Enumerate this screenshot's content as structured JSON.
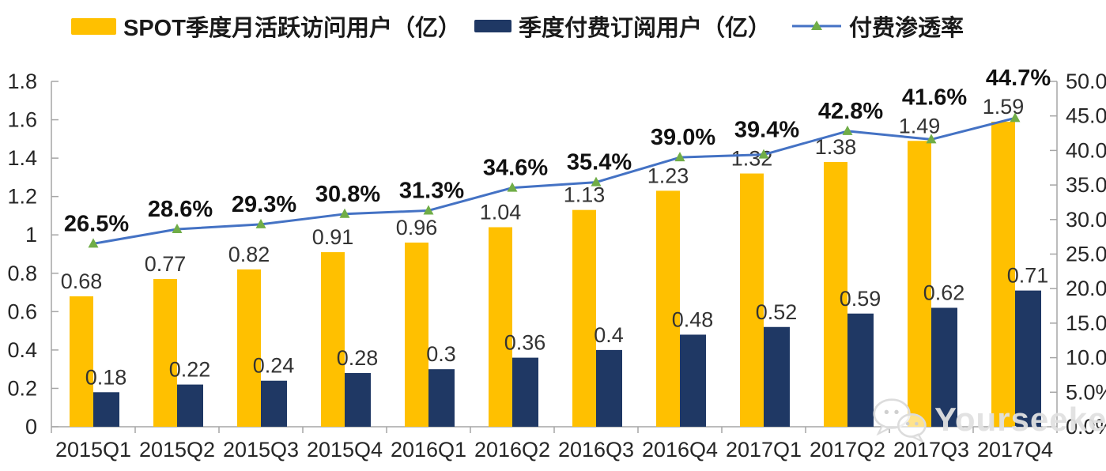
{
  "legend": {
    "items": [
      {
        "label": "SPOT季度月活跃访问用户（亿）"
      },
      {
        "label": "季度付费订阅用户（亿）"
      },
      {
        "label": "付费渗透率"
      }
    ]
  },
  "watermark": {
    "text": "Yourseeker"
  },
  "chart_data": {
    "type": "combo-bar-line",
    "categories": [
      "2015Q1",
      "2015Q2",
      "2015Q3",
      "2015Q4",
      "2016Q1",
      "2016Q2",
      "2016Q3",
      "2016Q4",
      "2017Q1",
      "2017Q2",
      "2017Q3",
      "2017Q4"
    ],
    "series": [
      {
        "name": "SPOT季度月活跃访问用户（亿）",
        "type": "bar",
        "axis": "left",
        "color": "#FFC000",
        "values": [
          0.68,
          0.77,
          0.82,
          0.91,
          0.96,
          1.04,
          1.13,
          1.23,
          1.32,
          1.38,
          1.49,
          1.59
        ],
        "labels": [
          "0.68",
          "0.77",
          "0.82",
          "0.91",
          "0.96",
          "1.04",
          "1.13",
          "1.23",
          "1.32",
          "1.38",
          "1.49",
          "1.59"
        ]
      },
      {
        "name": "季度付费订阅用户（亿）",
        "type": "bar",
        "axis": "left",
        "color": "#1F3864",
        "values": [
          0.18,
          0.22,
          0.24,
          0.28,
          0.3,
          0.36,
          0.4,
          0.48,
          0.52,
          0.59,
          0.62,
          0.71
        ],
        "labels": [
          "0.18",
          "0.22",
          "0.24",
          "0.28",
          "0.3",
          "0.36",
          "0.4",
          "0.48",
          "0.52",
          "0.59",
          "0.62",
          "0.71"
        ]
      },
      {
        "name": "付费渗透率",
        "type": "line",
        "axis": "right",
        "color": "#4472C4",
        "marker": "triangle",
        "marker_color": "#70AD47",
        "values": [
          26.5,
          28.6,
          29.3,
          30.8,
          31.3,
          34.6,
          35.4,
          39.0,
          39.4,
          42.8,
          41.6,
          44.7
        ],
        "labels": [
          "26.5%",
          "28.6%",
          "29.3%",
          "30.8%",
          "31.3%",
          "34.6%",
          "35.4%",
          "39.0%",
          "39.4%",
          "42.8%",
          "41.6%",
          "44.7%"
        ]
      }
    ],
    "left_axis": {
      "min": 0,
      "max": 1.8,
      "tick_labels_top_down": [
        "1.8",
        "1.6",
        "1.4",
        "1.2",
        "1",
        "0.8",
        "0.6",
        "0.4",
        "0.2",
        "0"
      ]
    },
    "right_axis": {
      "min": 0,
      "max": 50,
      "tick_labels_top_down": [
        "50.0%",
        "45.0%",
        "40.0%",
        "35.0%",
        "30.0%",
        "25.0%",
        "20.0%",
        "15.0%",
        "10.0%",
        "5.0%",
        "0.0%"
      ]
    },
    "grid": false,
    "legend_position": "top",
    "axis_color": "#A6A6A6",
    "label_color": "#262626"
  }
}
